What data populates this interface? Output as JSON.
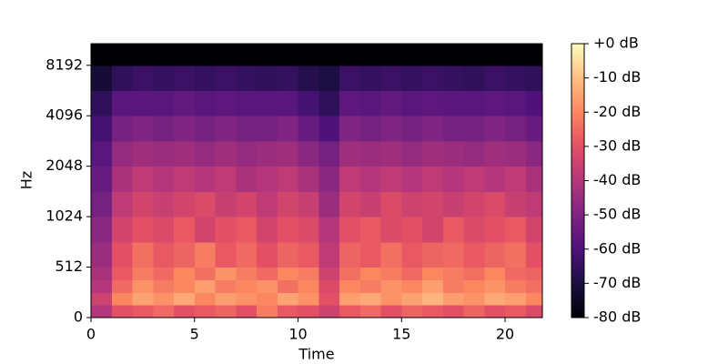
{
  "chart_data": {
    "type": "spectrogram",
    "x_label": "Time",
    "y_label": "Hz",
    "xlim": [
      0,
      21.8
    ],
    "xticks": [
      0,
      5,
      10,
      15,
      20
    ],
    "ylim": [
      0,
      11025
    ],
    "yscale": "symlog",
    "linthresh": 512,
    "yticks": [
      0,
      512,
      1024,
      2048,
      4096,
      8192
    ],
    "colormap": "magma",
    "clim": [
      -80,
      0
    ],
    "cticks": [
      {
        "value": 0,
        "label": "+0 dB"
      },
      {
        "value": -10,
        "label": "-10 dB"
      },
      {
        "value": -20,
        "label": "-20 dB"
      },
      {
        "value": -30,
        "label": "-30 dB"
      },
      {
        "value": -40,
        "label": "-40 dB"
      },
      {
        "value": -50,
        "label": "-50 dB"
      },
      {
        "value": -60,
        "label": "-60 dB"
      },
      {
        "value": -70,
        "label": "-70 dB"
      },
      {
        "value": -80,
        "label": "-80 dB"
      }
    ],
    "time_bins": [
      0,
      1,
      2,
      3,
      4,
      5,
      6,
      7,
      8,
      9,
      10,
      11,
      12,
      13,
      14,
      15,
      16,
      17,
      18,
      19,
      20,
      21,
      21.8
    ],
    "freq_bins": [
      0,
      128,
      256,
      384,
      512,
      724,
      1024,
      1448,
      2048,
      2896,
      4096,
      5793,
      8192,
      11025
    ],
    "z": [
      [
        -40,
        -30,
        -28,
        -25,
        -30,
        -28,
        -26,
        -30,
        -22,
        -28,
        -30,
        -35,
        -28,
        -25,
        -30,
        -26,
        -28,
        -30,
        -26,
        -30,
        -28,
        -32
      ],
      [
        -35,
        -20,
        -15,
        -18,
        -14,
        -20,
        -16,
        -18,
        -20,
        -15,
        -18,
        -30,
        -16,
        -14,
        -18,
        -15,
        -12,
        -16,
        -18,
        -14,
        -16,
        -20
      ],
      [
        -40,
        -25,
        -18,
        -22,
        -20,
        -16,
        -22,
        -20,
        -18,
        -24,
        -20,
        -32,
        -20,
        -22,
        -18,
        -20,
        -16,
        -22,
        -20,
        -18,
        -22,
        -24
      ],
      [
        -42,
        -28,
        -22,
        -25,
        -20,
        -24,
        -18,
        -22,
        -25,
        -20,
        -22,
        -35,
        -24,
        -20,
        -22,
        -25,
        -20,
        -22,
        -24,
        -20,
        -25,
        -26
      ],
      [
        -45,
        -30,
        -24,
        -28,
        -26,
        -22,
        -28,
        -25,
        -30,
        -26,
        -28,
        -38,
        -26,
        -28,
        -24,
        -28,
        -26,
        -25,
        -28,
        -26,
        -24,
        -30
      ],
      [
        -48,
        -34,
        -30,
        -32,
        -28,
        -34,
        -30,
        -28,
        -34,
        -30,
        -32,
        -40,
        -30,
        -28,
        -32,
        -30,
        -34,
        -28,
        -32,
        -30,
        -28,
        -34
      ],
      [
        -52,
        -38,
        -34,
        -36,
        -34,
        -32,
        -36,
        -34,
        -38,
        -34,
        -36,
        -45,
        -34,
        -36,
        -32,
        -35,
        -34,
        -36,
        -34,
        -32,
        -36,
        -38
      ],
      [
        -55,
        -42,
        -38,
        -40,
        -38,
        -40,
        -38,
        -42,
        -40,
        -38,
        -42,
        -48,
        -38,
        -40,
        -38,
        -40,
        -38,
        -40,
        -38,
        -40,
        -38,
        -42
      ],
      [
        -58,
        -46,
        -44,
        -45,
        -44,
        -46,
        -44,
        -46,
        -45,
        -44,
        -48,
        -52,
        -44,
        -45,
        -44,
        -46,
        -44,
        -45,
        -46,
        -44,
        -45,
        -48
      ],
      [
        -62,
        -52,
        -50,
        -52,
        -50,
        -52,
        -50,
        -52,
        -52,
        -50,
        -55,
        -60,
        -50,
        -52,
        -50,
        -52,
        -50,
        -52,
        -52,
        -50,
        -52,
        -55
      ],
      [
        -66,
        -58,
        -58,
        -58,
        -56,
        -58,
        -57,
        -58,
        -58,
        -58,
        -62,
        -66,
        -57,
        -58,
        -56,
        -58,
        -57,
        -58,
        -58,
        -57,
        -58,
        -60
      ],
      [
        -72,
        -66,
        -64,
        -65,
        -64,
        -65,
        -64,
        -65,
        -66,
        -65,
        -68,
        -70,
        -64,
        -65,
        -64,
        -65,
        -64,
        -65,
        -66,
        -64,
        -65,
        -66
      ],
      [
        -80,
        -80,
        -80,
        -80,
        -80,
        -80,
        -80,
        -80,
        -80,
        -80,
        -80,
        -80,
        -80,
        -80,
        -80,
        -80,
        -80,
        -80,
        -80,
        -80,
        -80,
        -80
      ]
    ]
  }
}
